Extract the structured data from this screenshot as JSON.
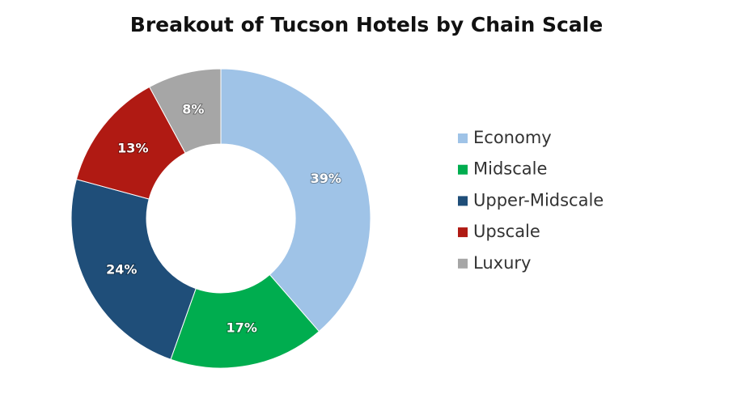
{
  "chart_data": {
    "type": "donut",
    "title": "Breakout of Tucson Hotels by Chain Scale",
    "categories": [
      "Economy",
      "Midscale",
      "Upper-Midscale",
      "Upscale",
      "Luxury"
    ],
    "values": [
      39,
      17,
      24,
      13,
      8
    ],
    "value_labels": [
      "39%",
      "17%",
      "24%",
      "13%",
      "8%"
    ],
    "colors": [
      "#9fc3e7",
      "#00ad4f",
      "#1f4e79",
      "#b01a13",
      "#a6a6a6"
    ],
    "legend": "right"
  }
}
